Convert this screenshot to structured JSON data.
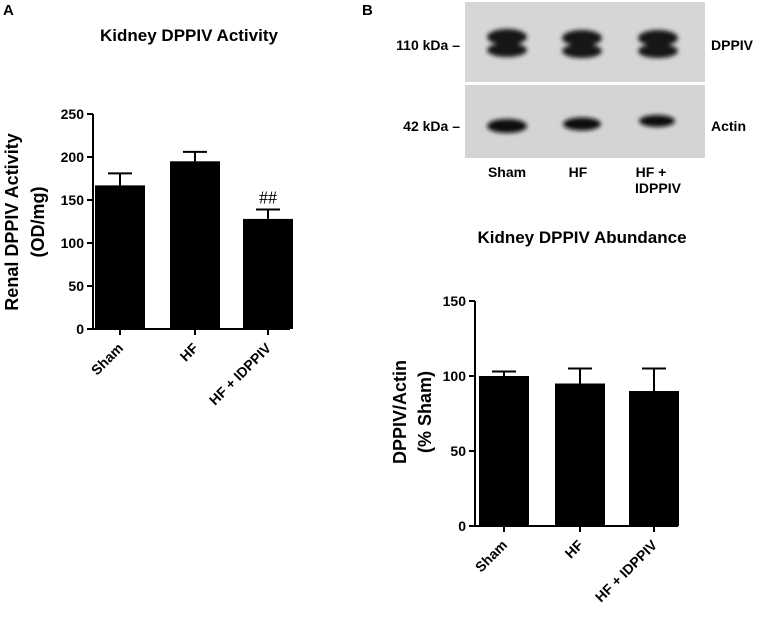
{
  "panels": {
    "a": {
      "letter": "A"
    },
    "b": {
      "letter": "B"
    }
  },
  "blot": {
    "band_rows": [
      {
        "size_label": "110 kDa –",
        "protein_label": "DPPIV"
      },
      {
        "size_label": "42 kDa –",
        "protein_label": "Actin"
      }
    ],
    "lanes": [
      {
        "line1": "Sham",
        "line2": ""
      },
      {
        "line1": "HF",
        "line2": ""
      },
      {
        "line1": "HF +",
        "line2": "IDPPIV"
      }
    ]
  },
  "chart_data": [
    {
      "id": "activity",
      "type": "bar",
      "title": "Kidney DPPIV Activity",
      "ylabel_lines": [
        "Renal DPPIV Activity",
        "(OD/mg)"
      ],
      "categories": [
        "Sham",
        "HF",
        "HF + IDPPIV"
      ],
      "values": [
        167,
        195,
        128
      ],
      "errors": [
        14,
        11,
        11
      ],
      "annotations": [
        "",
        "",
        "##"
      ],
      "ylim": [
        0,
        250
      ],
      "yticks": [
        0,
        50,
        100,
        150,
        200,
        250
      ],
      "bar_color": "#000000",
      "grid": false
    },
    {
      "id": "abundance",
      "type": "bar",
      "title": "Kidney DPPIV Abundance",
      "ylabel_lines": [
        "DPPIV/Actin",
        "(% Sham)"
      ],
      "categories": [
        "Sham",
        "HF",
        "HF + IDPPIV"
      ],
      "values": [
        100,
        95,
        90
      ],
      "errors": [
        3,
        10,
        15
      ],
      "annotations": [
        "",
        "",
        ""
      ],
      "ylim": [
        0,
        150
      ],
      "yticks": [
        0,
        50,
        100,
        150
      ],
      "bar_color": "#000000",
      "grid": false
    }
  ]
}
